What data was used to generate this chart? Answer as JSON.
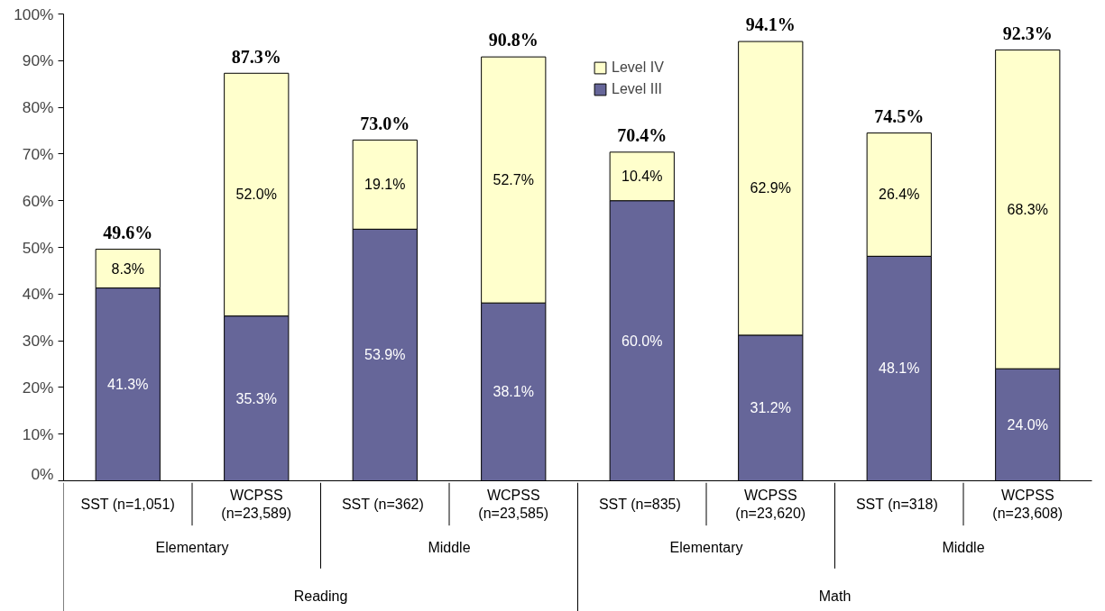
{
  "chart_data": {
    "type": "bar",
    "stacked": true,
    "categories": [
      "SST (n=1,051)",
      "WCPSS\n(n=23,589)",
      "SST  (n=362)",
      "WCPSS\n(n=23,585)",
      "SST  (n=835)",
      "WCPSS\n(n=23,620)",
      "SST  (n=318)",
      "WCPSS\n(n=23,608)"
    ],
    "series": [
      {
        "name": "Level III",
        "color": "#666699",
        "values": [
          41.3,
          35.3,
          53.9,
          38.1,
          60.0,
          31.2,
          48.1,
          24.0
        ],
        "value_labels": [
          "41.3%",
          "35.3%",
          "53.9%",
          "38.1%",
          "60.0%",
          "31.2%",
          "48.1%",
          "24.0%"
        ]
      },
      {
        "name": "Level IV",
        "color": "#ffffcc",
        "values": [
          8.3,
          52.0,
          19.1,
          52.7,
          10.4,
          62.9,
          26.4,
          68.3
        ],
        "value_labels": [
          "8.3%",
          "52.0%",
          "19.1%",
          "52.7%",
          "10.4%",
          "62.9%",
          "26.4%",
          "68.3%"
        ]
      }
    ],
    "totals": [
      "49.6%",
      "87.3%",
      "73.0%",
      "90.8%",
      "70.4%",
      "94.1%",
      "74.5%",
      "92.3%"
    ],
    "ylim": [
      0,
      100
    ],
    "yticks": [
      {
        "value": 0,
        "label": "0%"
      },
      {
        "value": 10,
        "label": "10%"
      },
      {
        "value": 20,
        "label": "20%"
      },
      {
        "value": 30,
        "label": "30%"
      },
      {
        "value": 40,
        "label": "40%"
      },
      {
        "value": 50,
        "label": "50%"
      },
      {
        "value": 60,
        "label": "60%"
      },
      {
        "value": 70,
        "label": "70%"
      },
      {
        "value": 80,
        "label": "80%"
      },
      {
        "value": 90,
        "label": "90%"
      },
      {
        "value": 100,
        "label": "100%"
      }
    ],
    "annotations": [
      "Elementary",
      "Middle",
      "Elementary",
      "Middle",
      "Reading",
      "Math"
    ],
    "grid": false,
    "legend": "top"
  }
}
